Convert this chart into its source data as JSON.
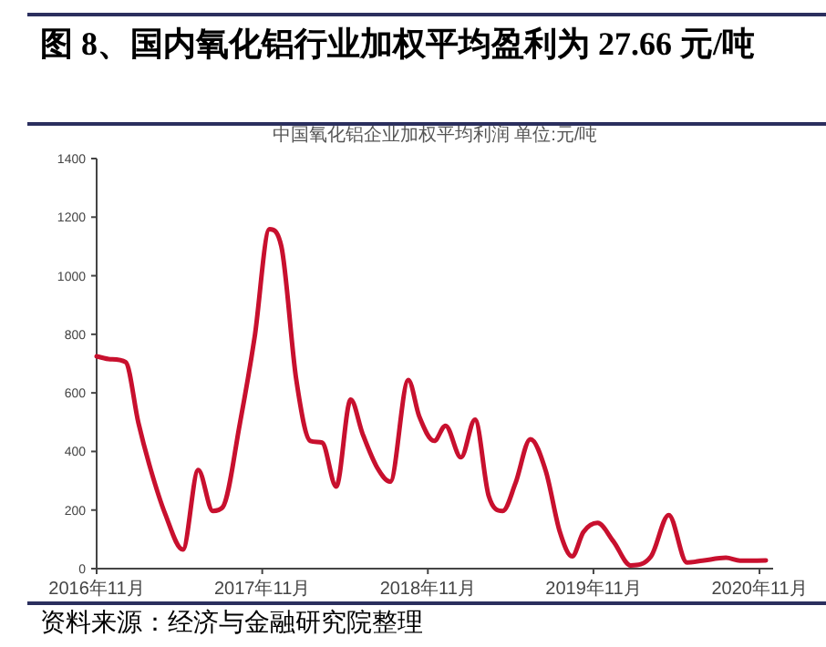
{
  "chart_data": {
    "type": "line",
    "title": "图 8、国内氧化铝行业加权平均盈利为 27.66 元/吨",
    "subtitle": "中国氧化铝企业加权平均利润 单位:元/吨",
    "annotations": [
      "资料来源：经济与金融研究院整理"
    ],
    "x": [
      "2016-11-01",
      "2016-12-01",
      "2017-01-04",
      "2017-02-01",
      "2017-03-01",
      "2017-04-01",
      "2017-05-10",
      "2017-06-13",
      "2017-07-15",
      "2017-08-06",
      "2017-09-13",
      "2017-10-15",
      "2017-11-17",
      "2017-12-13",
      "2018-01-15",
      "2018-02-15",
      "2018-03-13",
      "2018-04-13",
      "2018-05-15",
      "2018-06-10",
      "2018-07-13",
      "2018-08-10",
      "2018-09-19",
      "2018-10-13",
      "2018-11-15",
      "2018-12-10",
      "2019-01-13",
      "2019-02-13",
      "2019-03-15",
      "2019-04-15",
      "2019-05-13",
      "2019-06-15",
      "2019-07-19",
      "2019-08-19",
      "2019-09-15",
      "2019-10-10",
      "2019-11-10",
      "2019-12-15",
      "2020-01-22",
      "2020-03-07",
      "2020-04-15",
      "2020-05-25",
      "2020-06-28",
      "2020-08-19",
      "2020-09-19",
      "2020-11-15"
    ],
    "series": [
      {
        "color": "#c8102e",
        "values": [
          725,
          715,
          705,
          498,
          334,
          187,
          65,
          337,
          197,
          210,
          498,
          788,
          1159,
          1101,
          645,
          436,
          430,
          280,
          577,
          461,
          343,
          297,
          644,
          520,
          436,
          488,
          380,
          509,
          249,
          197,
          291,
          442,
          333,
          125,
          42,
          125,
          156,
          93,
          11,
          42,
          183,
          21,
          27,
          37,
          27,
          28
        ]
      }
    ],
    "xlim": [
      "2016-11-01",
      "2020-12-01"
    ],
    "xticks": [
      {
        "value": "2016-11-01",
        "label": "2016年11月"
      },
      {
        "value": "2017-11-01",
        "label": "2017年11月"
      },
      {
        "value": "2018-11-01",
        "label": "2018年11月"
      },
      {
        "value": "2019-11-01",
        "label": "2019年11月"
      },
      {
        "value": "2020-11-01",
        "label": "2020年11月"
      }
    ],
    "ylim": [
      0,
      1400
    ],
    "yticks": [
      0,
      200,
      400,
      600,
      800,
      1000,
      1200,
      1400
    ],
    "grid": false,
    "marker": "none",
    "line_style": "solid"
  }
}
